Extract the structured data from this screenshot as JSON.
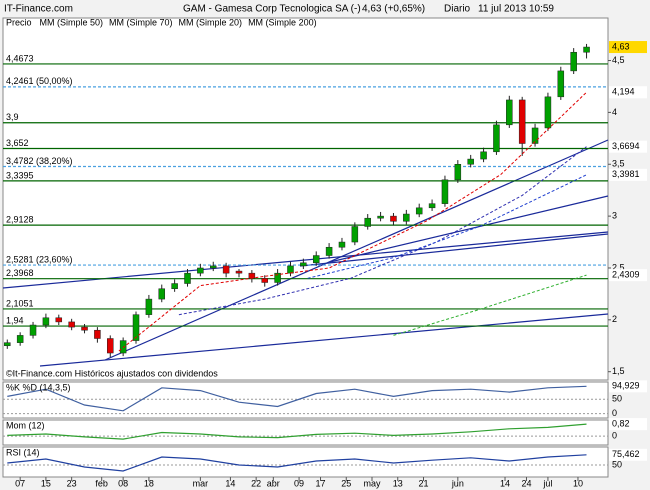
{
  "header": {
    "brand": "IT-Finance.com",
    "title": "GAM - Gamesa Corp Tecnologica SA (-)",
    "price": "4,63 (+0,65%)",
    "period": "Diario",
    "datetime": "11 jul 2013 10:59"
  },
  "chart_data": [
    {
      "type": "candlestick",
      "price_label": "Precio",
      "footer": "©It-Finance.com  Históricos ajustados con dividendos",
      "xlim": [
        -1,
        140
      ],
      "ylim": [
        1.42,
        4.91
      ],
      "xticks": [
        {
          "value": 3,
          "label": "07"
        },
        {
          "value": 9,
          "label": "15"
        },
        {
          "value": 15,
          "label": "23"
        },
        {
          "value": 22,
          "label": "feb"
        },
        {
          "value": 27,
          "label": "08"
        },
        {
          "value": 33,
          "label": "18"
        },
        {
          "value": 45,
          "label": "mar"
        },
        {
          "value": 52,
          "label": "14"
        },
        {
          "value": 58,
          "label": "22"
        },
        {
          "value": 62,
          "label": "abr"
        },
        {
          "value": 68,
          "label": "09"
        },
        {
          "value": 73,
          "label": "17"
        },
        {
          "value": 79,
          "label": "25"
        },
        {
          "value": 85,
          "label": "may"
        },
        {
          "value": 91,
          "label": "13"
        },
        {
          "value": 97,
          "label": "21"
        },
        {
          "value": 105,
          "label": "jun"
        },
        {
          "value": 116,
          "label": "14"
        },
        {
          "value": 121,
          "label": "24"
        },
        {
          "value": 126,
          "label": "jul"
        },
        {
          "value": 133,
          "label": "10"
        }
      ],
      "yticks": [
        {
          "value": 4.5,
          "label": "4,5"
        },
        4,
        {
          "value": 3.5,
          "label": "3,5"
        },
        3,
        {
          "value": 2.5,
          "label": "2,5"
        },
        2,
        {
          "value": 1.5,
          "label": "1,5"
        }
      ],
      "up_color": "#00a000",
      "down_color": "#e00000",
      "candles": {
        "x": [
          0,
          3,
          6,
          9,
          12,
          15,
          18,
          21,
          24,
          27,
          30,
          33,
          36,
          39,
          42,
          45,
          48,
          51,
          54,
          57,
          60,
          63,
          66,
          69,
          72,
          75,
          78,
          81,
          84,
          87,
          90,
          93,
          96,
          99,
          102,
          105,
          108,
          111,
          114,
          117,
          120,
          123,
          126,
          129,
          132,
          135
        ],
        "open": [
          1.75,
          1.78,
          1.85,
          1.95,
          2.02,
          1.98,
          1.93,
          1.9,
          1.82,
          1.68,
          1.8,
          2.05,
          2.2,
          2.3,
          2.35,
          2.45,
          2.5,
          2.52,
          2.47,
          2.45,
          2.4,
          2.36,
          2.45,
          2.52,
          2.55,
          2.62,
          2.7,
          2.75,
          2.9,
          2.98,
          3.0,
          2.95,
          3.02,
          3.08,
          3.12,
          3.35,
          3.5,
          3.55,
          3.62,
          3.88,
          4.12,
          3.7,
          3.85,
          4.15,
          4.4,
          4.58
        ],
        "high": [
          1.81,
          1.88,
          1.98,
          2.06,
          2.05,
          2.01,
          1.96,
          1.93,
          1.85,
          1.83,
          2.08,
          2.24,
          2.34,
          2.39,
          2.49,
          2.54,
          2.56,
          2.55,
          2.49,
          2.48,
          2.43,
          2.49,
          2.56,
          2.59,
          2.66,
          2.74,
          2.79,
          2.94,
          3.02,
          3.04,
          3.03,
          3.06,
          3.12,
          3.16,
          3.39,
          3.54,
          3.59,
          3.66,
          3.92,
          4.16,
          4.15,
          3.89,
          4.19,
          4.44,
          4.62,
          4.66
        ],
        "low": [
          1.72,
          1.75,
          1.82,
          1.92,
          1.95,
          1.9,
          1.87,
          1.78,
          1.64,
          1.65,
          1.77,
          2.02,
          2.17,
          2.27,
          2.32,
          2.42,
          2.47,
          2.41,
          2.41,
          2.36,
          2.32,
          2.33,
          2.42,
          2.49,
          2.52,
          2.59,
          2.67,
          2.72,
          2.87,
          2.95,
          2.91,
          2.92,
          2.99,
          3.05,
          3.09,
          3.32,
          3.47,
          3.52,
          3.59,
          3.85,
          3.58,
          3.67,
          3.82,
          4.12,
          4.37,
          4.52
        ],
        "close": [
          1.78,
          1.85,
          1.95,
          2.02,
          1.98,
          1.93,
          1.9,
          1.82,
          1.68,
          1.8,
          2.05,
          2.2,
          2.3,
          2.35,
          2.45,
          2.5,
          2.52,
          2.45,
          2.45,
          2.4,
          2.36,
          2.45,
          2.52,
          2.55,
          2.62,
          2.7,
          2.75,
          2.9,
          2.98,
          3.0,
          2.95,
          3.02,
          3.08,
          3.12,
          3.35,
          3.5,
          3.55,
          3.62,
          3.88,
          4.12,
          3.7,
          3.85,
          4.15,
          4.4,
          4.58,
          4.63
        ],
        "value_labels": [
          null,
          null,
          null,
          null,
          null,
          null,
          null,
          null,
          null,
          null,
          null,
          null,
          null,
          null,
          null,
          null,
          null,
          null,
          null,
          null,
          null,
          null,
          null,
          null,
          null,
          null,
          null,
          null,
          null,
          null,
          null,
          null,
          null,
          null,
          null,
          null,
          null,
          null,
          null,
          null,
          null,
          null,
          null,
          null,
          null,
          "4,63"
        ],
        "label_color": "#ffd800"
      },
      "series": [
        {
          "name": "MM (Simple 50)",
          "color": "#3030b0",
          "x": [
            40,
            60,
            80,
            100,
            120,
            135
          ],
          "values": [
            2.05,
            2.2,
            2.4,
            2.75,
            3.2,
            3.6694
          ],
          "value_labels": [
            null,
            null,
            null,
            null,
            null,
            "3,6694"
          ]
        },
        {
          "name": "MM (Simple 70)",
          "color": "#2040d0",
          "x": [
            70,
            90,
            110,
            135
          ],
          "values": [
            2.4,
            2.6,
            2.9,
            3.3981
          ],
          "value_labels": [
            null,
            null,
            null,
            "3,3981"
          ]
        },
        {
          "name": "MM (Simple 20)",
          "color": "#e00000",
          "x": [
            26,
            45,
            60,
            75,
            98,
            115,
            135
          ],
          "values": [
            1.7,
            2.33,
            2.42,
            2.5,
            2.96,
            3.4,
            4.194
          ],
          "value_labels": [
            null,
            null,
            null,
            null,
            null,
            null,
            "4,194"
          ]
        },
        {
          "name": "MM (Simple 200)",
          "color": "#30b030",
          "x": [
            90,
            110,
            135
          ],
          "values": [
            1.85,
            2.1,
            2.4309
          ],
          "value_labels": [
            null,
            null,
            "2,4309"
          ]
        }
      ],
      "levels": [
        {
          "value": 4.4673,
          "label": "4,4673",
          "color": "#006400"
        },
        {
          "value": 4.2461,
          "label": "4,2461 (50,00%)",
          "color": "#4aa0e0"
        },
        {
          "value": 3.9,
          "label": "3,9",
          "color": "#006400"
        },
        {
          "value": 3.652,
          "label": "3,652",
          "color": "#006400"
        },
        {
          "value": 3.4782,
          "label": "3,4782 (38,20%)",
          "color": "#4aa0e0"
        },
        {
          "value": 3.3395,
          "label": "3,3395",
          "color": "#006400"
        },
        {
          "value": 2.9128,
          "label": "2,9128",
          "color": "#006400"
        },
        {
          "value": 2.5281,
          "label": "2,5281 (23,60%)",
          "color": "#4aa0e0"
        },
        {
          "value": 2.3968,
          "label": "2,3968",
          "color": "#006400"
        },
        {
          "value": 2.1051,
          "label": "2,1051",
          "color": "#006400"
        },
        {
          "value": 1.94,
          "label": "1,94",
          "color": "#006400"
        }
      ]
    },
    {
      "type": "line",
      "title": "%K %D (14,3,5)",
      "title_color": "#d06080",
      "xlim": [
        -1,
        140
      ],
      "ylim": [
        -15,
        110
      ],
      "yticks": [
        50,
        0
      ],
      "series": [
        {
          "color": "#4060a0",
          "x": [
            0,
            9,
            18,
            27,
            36,
            45,
            54,
            63,
            72,
            81,
            90,
            99,
            108,
            117,
            126,
            135
          ],
          "values": [
            60,
            85,
            30,
            10,
            90,
            80,
            40,
            25,
            70,
            85,
            60,
            80,
            85,
            75,
            90,
            94.929
          ],
          "value_labels": [
            null,
            null,
            null,
            null,
            null,
            null,
            null,
            null,
            null,
            null,
            null,
            null,
            null,
            null,
            null,
            "94,929"
          ]
        }
      ]
    },
    {
      "type": "line",
      "title": "Mom (12)",
      "title_color": "#e00000",
      "xlim": [
        -1,
        140
      ],
      "ylim": [
        -0.6,
        1.1
      ],
      "yticks": [
        0
      ],
      "series": [
        {
          "color": "#30a030",
          "x": [
            0,
            9,
            18,
            27,
            36,
            45,
            54,
            63,
            72,
            81,
            90,
            99,
            108,
            117,
            126,
            135
          ],
          "values": [
            0.05,
            0.15,
            -0.05,
            -0.2,
            0.25,
            0.15,
            -0.05,
            -0.1,
            0.12,
            0.2,
            0.05,
            0.15,
            0.3,
            0.5,
            0.6,
            0.82
          ],
          "value_labels": [
            null,
            null,
            null,
            null,
            null,
            null,
            null,
            null,
            null,
            null,
            null,
            null,
            null,
            null,
            null,
            "0,82"
          ]
        }
      ]
    },
    {
      "type": "line",
      "title": "RSI (14)",
      "title_color": "#000000",
      "xlim": [
        -1,
        140
      ],
      "ylim": [
        20,
        95
      ],
      "yticks": [
        50
      ],
      "series": [
        {
          "color": "#2040a0",
          "x": [
            0,
            9,
            18,
            27,
            36,
            45,
            54,
            63,
            72,
            81,
            90,
            99,
            108,
            117,
            126,
            135
          ],
          "values": [
            55,
            65,
            45,
            35,
            70,
            65,
            50,
            45,
            60,
            65,
            55,
            62,
            68,
            60,
            70,
            75.462
          ],
          "value_labels": [
            null,
            null,
            null,
            null,
            null,
            null,
            null,
            null,
            null,
            null,
            null,
            null,
            null,
            null,
            null,
            "75,462"
          ]
        }
      ]
    }
  ]
}
